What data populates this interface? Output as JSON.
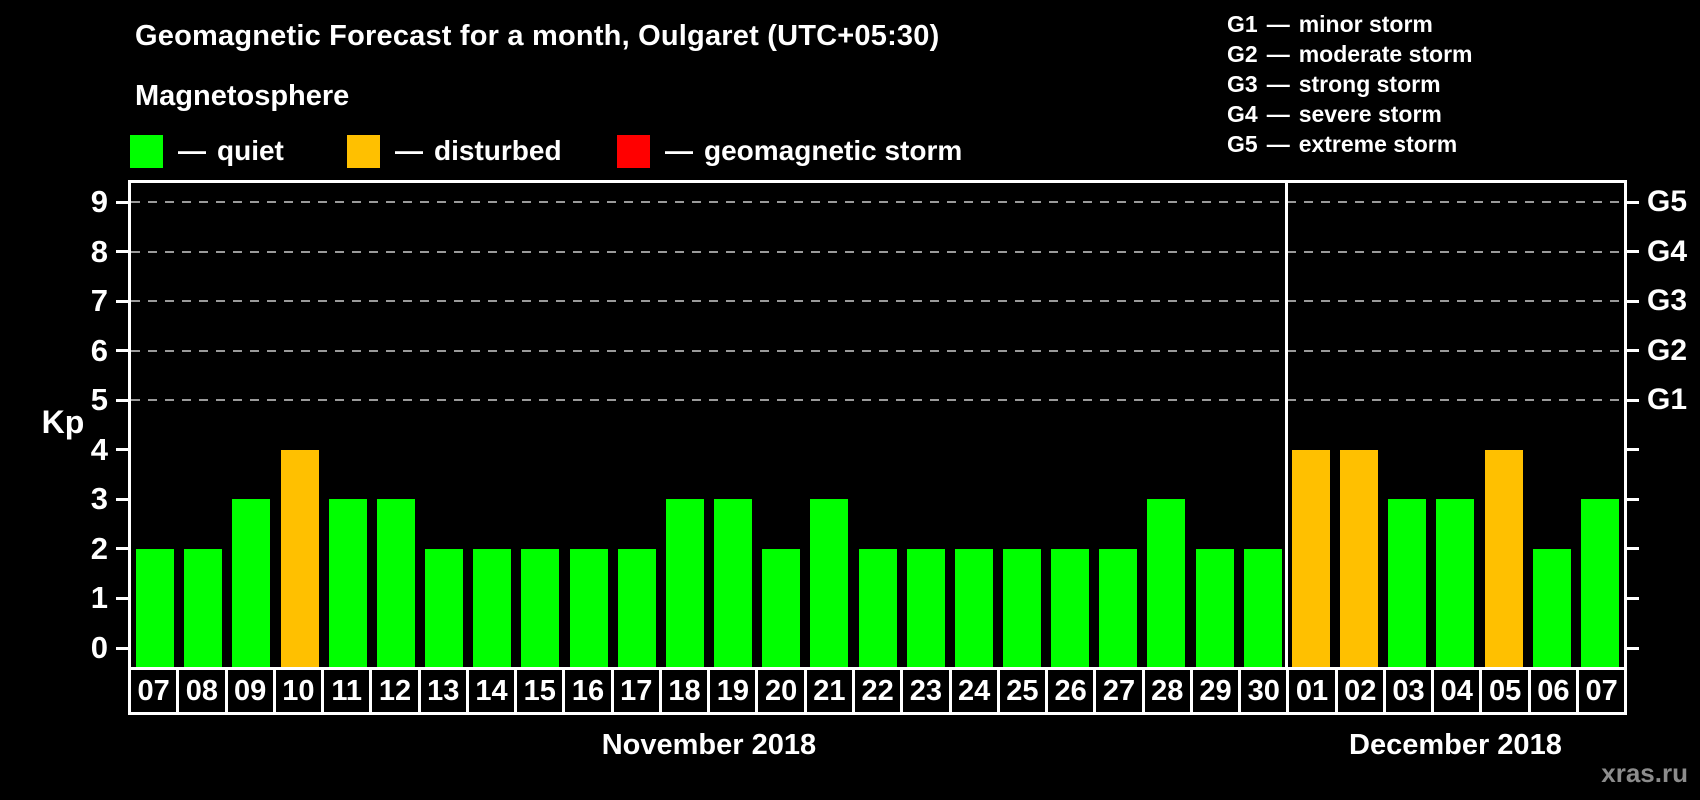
{
  "title": "Geomagnetic Forecast for a month, Oulgaret (UTC+05:30)",
  "subtitle": "Magnetosphere",
  "dash": "—",
  "legend": {
    "items": [
      {
        "label": "quiet",
        "color": "#00ff00"
      },
      {
        "label": "disturbed",
        "color": "#ffc000"
      },
      {
        "label": "geomagnetic storm",
        "color": "#ff0000"
      }
    ]
  },
  "storm_scale": [
    {
      "code": "G1",
      "label": "minor storm"
    },
    {
      "code": "G2",
      "label": "moderate storm"
    },
    {
      "code": "G3",
      "label": "strong storm"
    },
    {
      "code": "G4",
      "label": "severe storm"
    },
    {
      "code": "G5",
      "label": "extreme storm"
    }
  ],
  "watermark": "xras.ru",
  "chart_data": {
    "type": "bar",
    "ylabel": "Kp",
    "ylim": [
      0,
      9
    ],
    "yticks": [
      0,
      1,
      2,
      3,
      4,
      5,
      6,
      7,
      8,
      9
    ],
    "grid_kp_levels": [
      5,
      6,
      7,
      8,
      9
    ],
    "right_axis_labels": [
      {
        "kp": 9,
        "label": "G5"
      },
      {
        "kp": 8,
        "label": "G4"
      },
      {
        "kp": 7,
        "label": "G3"
      },
      {
        "kp": 6,
        "label": "G2"
      },
      {
        "kp": 5,
        "label": "G1"
      }
    ],
    "months": [
      {
        "label": "November 2018",
        "days": 24
      },
      {
        "label": "December 2018",
        "days": 7
      }
    ],
    "categories": [
      "07",
      "08",
      "09",
      "10",
      "11",
      "12",
      "13",
      "14",
      "15",
      "16",
      "17",
      "18",
      "19",
      "20",
      "21",
      "22",
      "23",
      "24",
      "25",
      "26",
      "27",
      "28",
      "29",
      "30",
      "01",
      "02",
      "03",
      "04",
      "05",
      "06",
      "07"
    ],
    "values": [
      2,
      2,
      3,
      4,
      3,
      3,
      2,
      2,
      2,
      2,
      2,
      3,
      3,
      2,
      3,
      2,
      2,
      2,
      2,
      2,
      2,
      3,
      2,
      2,
      4,
      4,
      3,
      3,
      4,
      2,
      3
    ],
    "statuses": [
      "quiet",
      "quiet",
      "quiet",
      "disturbed",
      "quiet",
      "quiet",
      "quiet",
      "quiet",
      "quiet",
      "quiet",
      "quiet",
      "quiet",
      "quiet",
      "quiet",
      "quiet",
      "quiet",
      "quiet",
      "quiet",
      "quiet",
      "quiet",
      "quiet",
      "quiet",
      "quiet",
      "quiet",
      "disturbed",
      "disturbed",
      "quiet",
      "quiet",
      "disturbed",
      "quiet",
      "quiet"
    ],
    "colors": {
      "quiet": "#00ff00",
      "disturbed": "#ffc000",
      "storm": "#ff0000"
    },
    "grid_color": "#9a9a9a",
    "axis_color": "#ffffff"
  }
}
